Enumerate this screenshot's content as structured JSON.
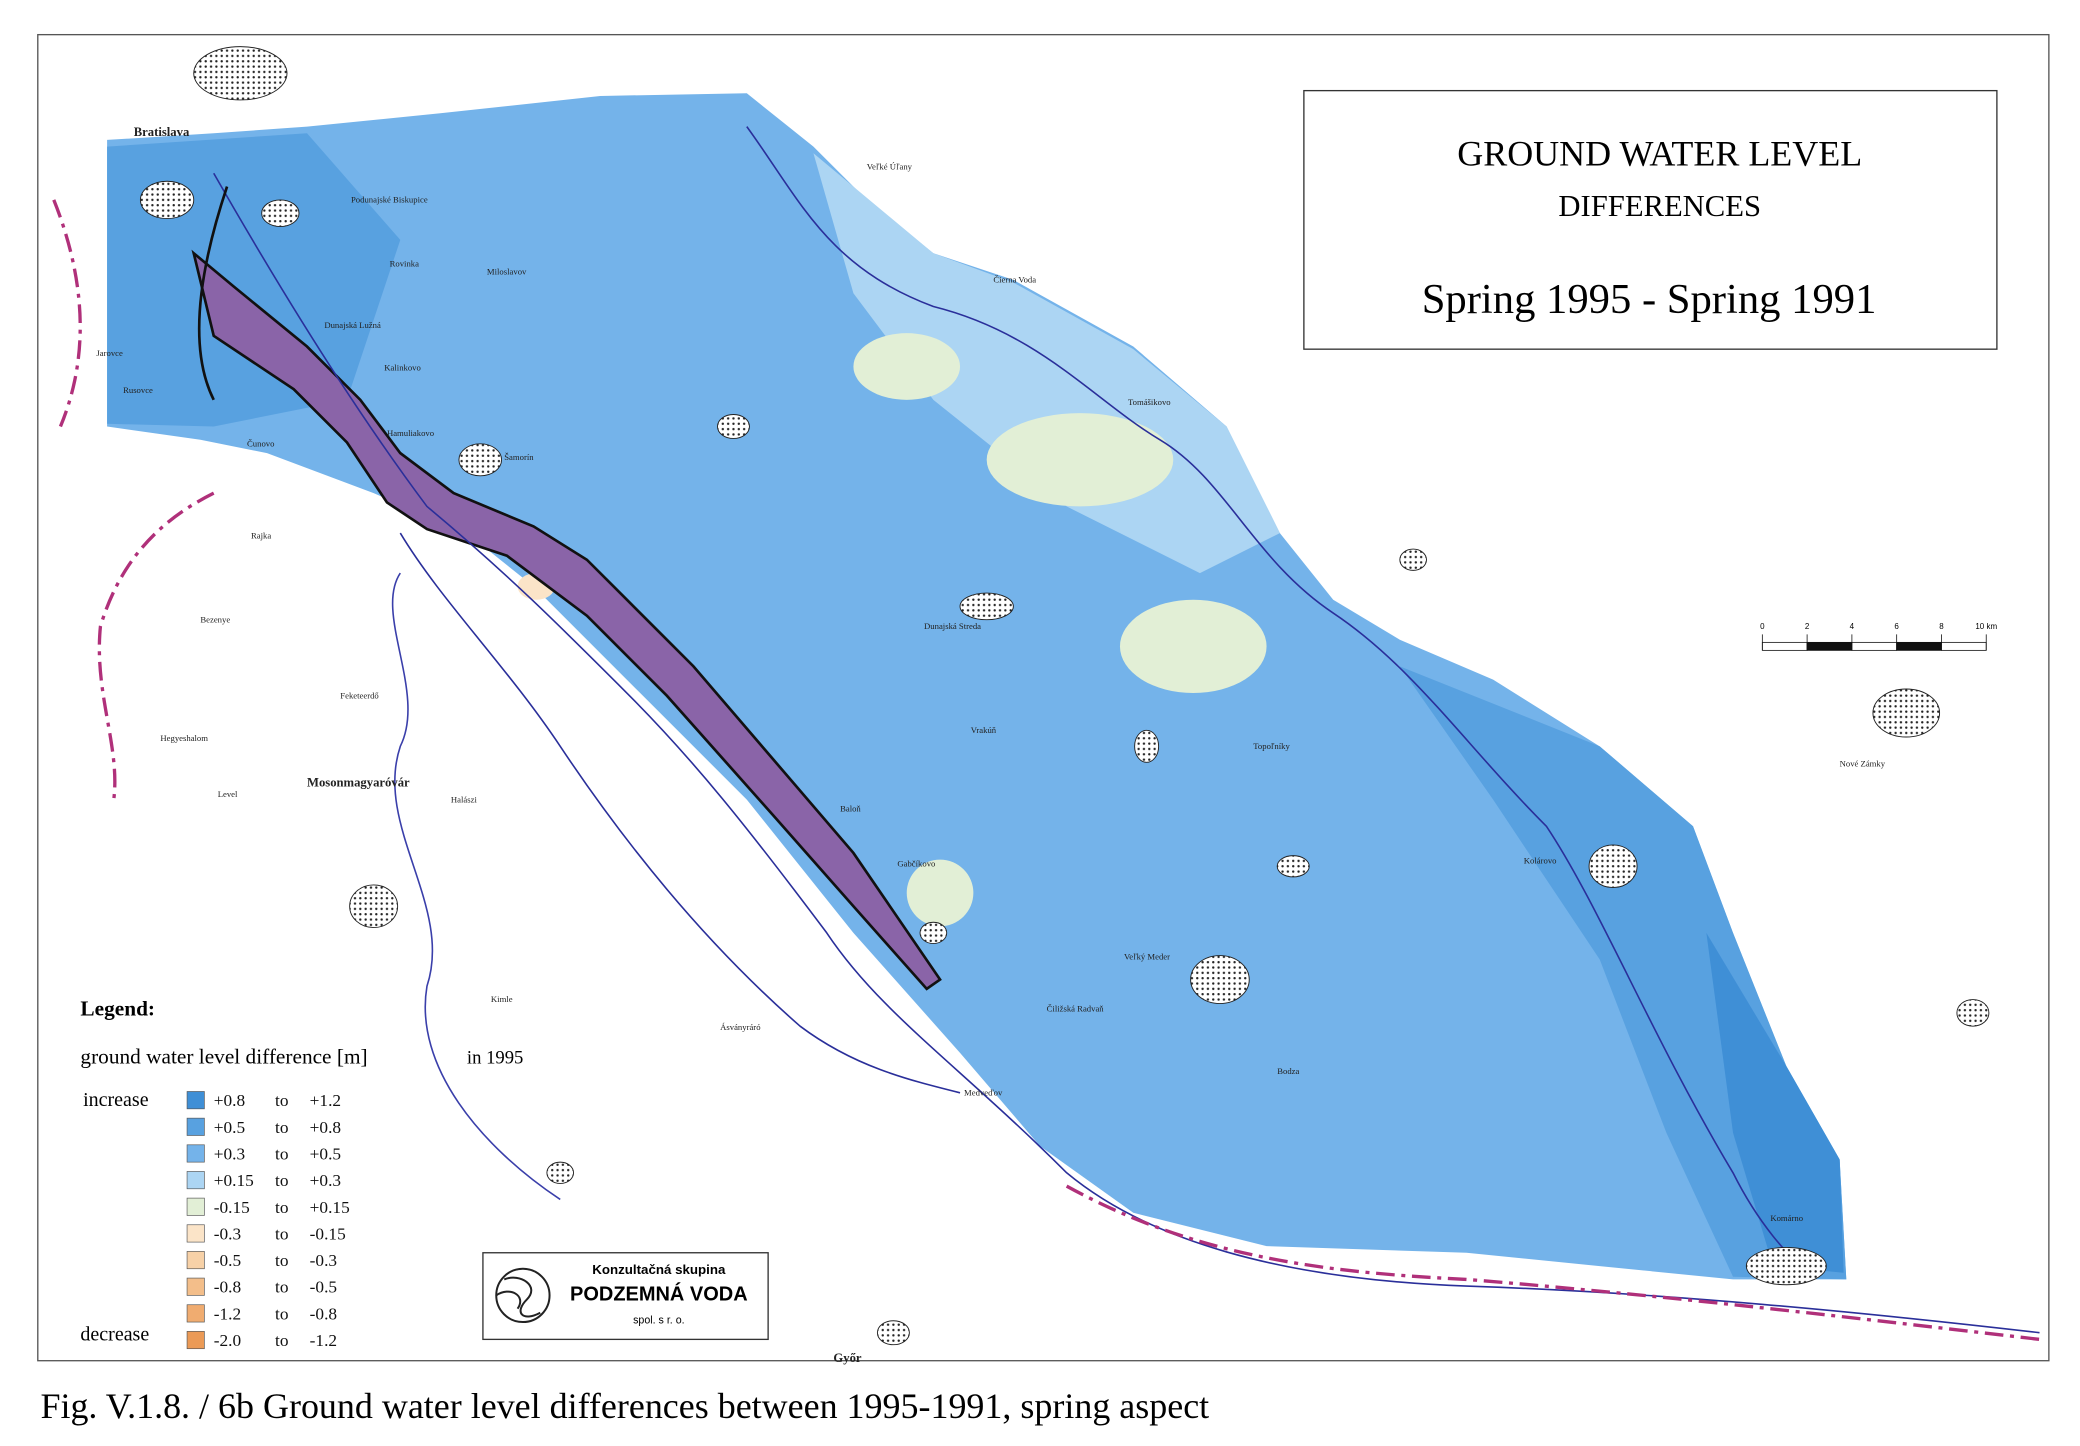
{
  "title": {
    "line1": "GROUND WATER LEVEL",
    "line2": "DIFFERENCES",
    "subtitle": "Spring 1995 - Spring 1991"
  },
  "legend": {
    "heading": "Legend:",
    "quantity": "ground water level difference [m]",
    "year_note": "in 1995",
    "increase": "increase",
    "decrease": "decrease",
    "connector": "to",
    "classes": [
      {
        "from": "+0.8",
        "to": "+1.2",
        "color": "#3f8fd6"
      },
      {
        "from": "+0.5",
        "to": "+0.8",
        "color": "#58a1e0"
      },
      {
        "from": "+0.3",
        "to": "+0.5",
        "color": "#74b3ea"
      },
      {
        "from": "+0.15",
        "to": "+0.3",
        "color": "#acd5f3"
      },
      {
        "from": "-0.15",
        "to": "+0.15",
        "color": "#e2efd6"
      },
      {
        "from": "-0.3",
        "to": "-0.15",
        "color": "#fbe4c8"
      },
      {
        "from": "-0.5",
        "to": "-0.3",
        "color": "#f7d1a7"
      },
      {
        "from": "-0.8",
        "to": "-0.5",
        "color": "#f3be8a"
      },
      {
        "from": "-1.2",
        "to": "-0.8",
        "color": "#f0ac70"
      },
      {
        "from": "-2.0",
        "to": "-1.2",
        "color": "#eb9a56"
      }
    ]
  },
  "scale_bar": {
    "ticks": [
      0,
      2,
      4,
      6,
      8,
      {
        "value": 10,
        "label": "10 km"
      }
    ]
  },
  "logo": {
    "line1": "Konzultačná skupina",
    "line2": "PODZEMNÁ VODA",
    "line3": "spol. s r. o."
  },
  "caption": "Fig. V.1.8. / 6b  Ground water level differences between 1995-1991, spring aspect",
  "places": [
    "Bratislava",
    "Šamorín",
    "Dunajská Streda",
    "Gabčíkovo",
    "Veľký Meder",
    "Kolárovo",
    "Komárno",
    "Nové Zámky",
    "Mosonmagyaróvár",
    "Győr",
    "Hegyeshalom",
    "Level",
    "Rajka",
    "Bezenye",
    "Feketeerdő",
    "Halászi",
    "Ásványráró",
    "Kimle",
    "Jarovce",
    "Rusovce",
    "Čunovo",
    "Rovinka",
    "Kalinkovo",
    "Hamuliakovo",
    "Dunajská Lužná",
    "Podunajské Biskupice",
    "Miloslavov",
    "Tomášikovo",
    "Veľké Úľany",
    "Čierna Voda",
    "Topoľníky",
    "Bodza",
    "Vrakúň",
    "Čiližská Radvaň",
    "Baloň",
    "Medveďov"
  ]
}
